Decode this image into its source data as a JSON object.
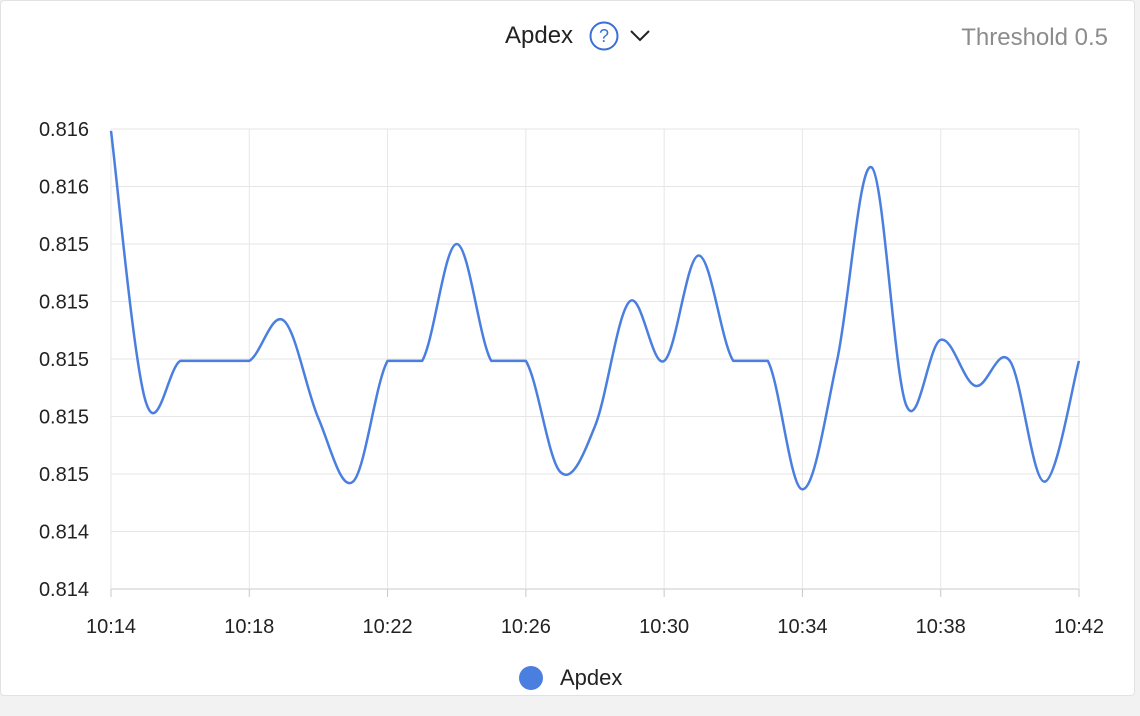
{
  "header": {
    "title": "Apdex",
    "threshold": "Threshold 0.5"
  },
  "colors": {
    "series": "#4a7fe0",
    "grid": "#e6e6e6",
    "axis": "#c8c8c8"
  },
  "icons": {
    "help": "question-circle-icon",
    "dropdown": "chevron-down-icon"
  },
  "legend": {
    "label": "Apdex"
  },
  "chart_data": {
    "type": "line",
    "title": "Apdex",
    "xlabel": "",
    "ylabel": "",
    "x_ticks": [
      "10:14",
      "10:18",
      "10:22",
      "10:26",
      "10:30",
      "10:34",
      "10:38",
      "10:42"
    ],
    "y_ticks": [
      "0.814",
      "0.814",
      "0.815",
      "0.815",
      "0.815",
      "0.815",
      "0.815",
      "0.816",
      "0.816"
    ],
    "ylim": [
      0.8138,
      0.8162
    ],
    "grid": true,
    "legend_position": "bottom",
    "series": [
      {
        "name": "Apdex",
        "x": [
          "10:14",
          "10:15",
          "10:16",
          "10:17",
          "10:18",
          "10:19",
          "10:20",
          "10:21",
          "10:22",
          "10:23",
          "10:24",
          "10:25",
          "10:26",
          "10:27",
          "10:28",
          "10:29",
          "10:30",
          "10:31",
          "10:32",
          "10:33",
          "10:34",
          "10:35",
          "10:36",
          "10:37",
          "10:38",
          "10:39",
          "10:40",
          "10:41",
          "10:42"
        ],
        "values": [
          0.81619,
          0.81478,
          0.81499,
          0.81499,
          0.81499,
          0.8152,
          0.81469,
          0.81436,
          0.81499,
          0.81499,
          0.8156,
          0.81499,
          0.81499,
          0.81441,
          0.81465,
          0.8153,
          0.81499,
          0.81554,
          0.81499,
          0.81499,
          0.81432,
          0.81499,
          0.816,
          0.81476,
          0.8151,
          0.81486,
          0.81499,
          0.81436,
          0.81499
        ]
      }
    ]
  }
}
